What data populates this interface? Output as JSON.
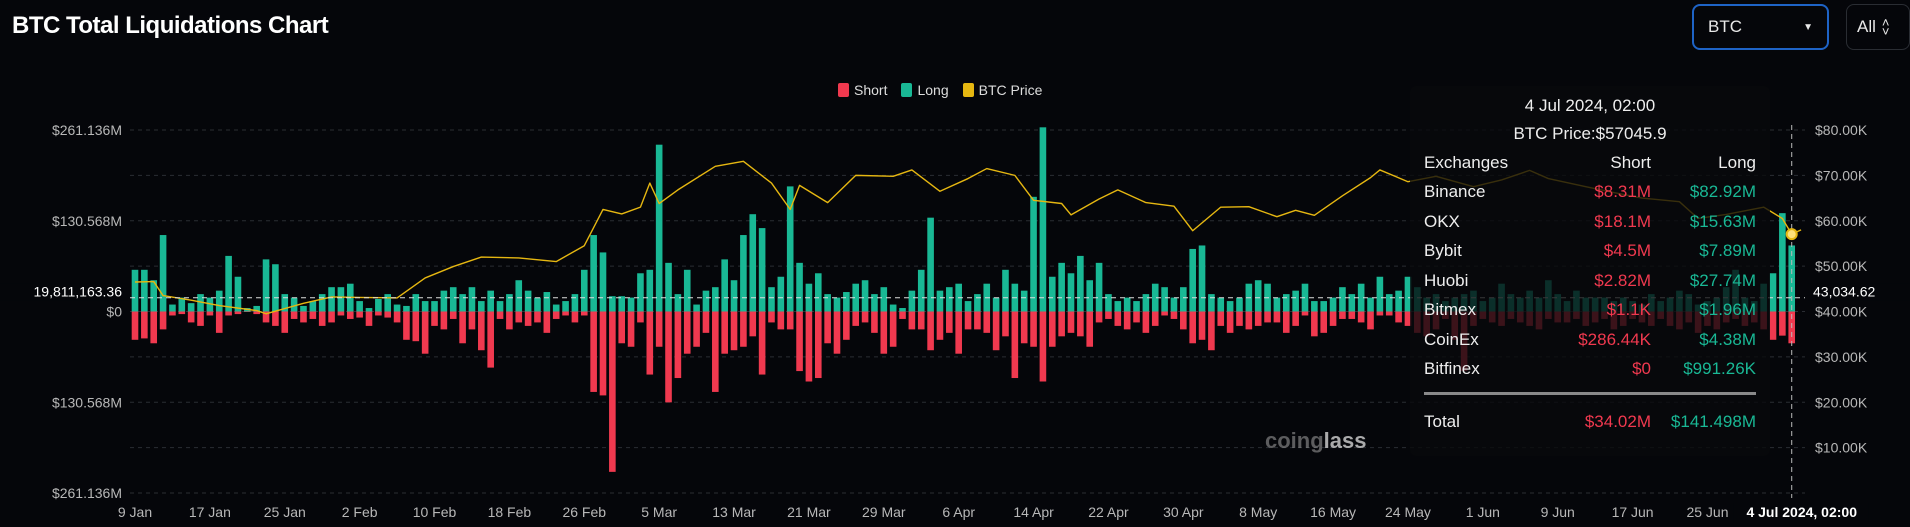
{
  "header": {
    "title": "BTC Total Liquidations Chart",
    "coin_select": "BTC",
    "range_select": "All"
  },
  "colors": {
    "short": "#f0394f",
    "long": "#19b895",
    "price": "#e6b711",
    "background": "#05060a",
    "select_border": "#1e63c6"
  },
  "legend": [
    {
      "label": "Short",
      "color": "#f0394f"
    },
    {
      "label": "Long",
      "color": "#19b895"
    },
    {
      "label": "BTC Price",
      "color": "#e6b711"
    }
  ],
  "tooltip": {
    "date": "4 Jul 2024, 02:00",
    "price": "BTC Price:$57045.9",
    "headers": {
      "name": "Exchanges",
      "short": "Short",
      "long": "Long"
    },
    "rows": [
      {
        "name": "Binance",
        "short": "$8.31M",
        "long": "$82.92M"
      },
      {
        "name": "OKX",
        "short": "$18.1M",
        "long": "$15.63M"
      },
      {
        "name": "Bybit",
        "short": "$4.5M",
        "long": "$7.89M"
      },
      {
        "name": "Huobi",
        "short": "$2.82M",
        "long": "$27.74M"
      },
      {
        "name": "Bitmex",
        "short": "$1.1K",
        "long": "$1.96M"
      },
      {
        "name": "CoinEx",
        "short": "$286.44K",
        "long": "$4.38M"
      },
      {
        "name": "Bitfinex",
        "short": "$0",
        "long": "$991.26K"
      }
    ],
    "total": {
      "name": "Total",
      "short": "$34.02M",
      "long": "$141.498M"
    }
  },
  "watermark": "coinglass",
  "chart_data": {
    "type": "bar",
    "title": "BTC Total Liquidations Chart",
    "x_ticks": [
      "9 Jan",
      "17 Jan",
      "25 Jan",
      "2 Feb",
      "10 Feb",
      "18 Feb",
      "26 Feb",
      "5 Mar",
      "13 Mar",
      "21 Mar",
      "29 Mar",
      "6 Apr",
      "14 Apr",
      "22 Apr",
      "30 Apr",
      "8 May",
      "16 May",
      "24 May",
      "1 Jun",
      "9 Jun",
      "17 Jun",
      "25 Jun"
    ],
    "x_hover_label": "4 Jul 2024, 02:00",
    "left_axis": {
      "ticks": [
        "$261.136M",
        "$130.568M",
        "$0",
        "$130.568M",
        "$261.136M"
      ],
      "range_musd": [
        -261.136,
        261.136
      ]
    },
    "right_axis": {
      "ticks": [
        "$80.00K",
        "$70.00K",
        "$60.00K",
        "$50.00K",
        "$40.00K",
        "$30.00K",
        "$20.00K",
        "$10.00K"
      ],
      "range": [
        0,
        80000
      ]
    },
    "crosshair": {
      "left_value": "19,811,163.36",
      "right_value": "43,034.62"
    },
    "grid": true,
    "legend_position": "top-center",
    "series": [
      {
        "name": "Long",
        "unit": "M USD",
        "values": [
          60,
          60,
          45,
          110,
          10,
          20,
          12,
          25,
          20,
          30,
          80,
          50,
          5,
          8,
          75,
          68,
          25,
          20,
          8,
          15,
          25,
          35,
          35,
          40,
          15,
          5,
          18,
          25,
          10,
          8,
          25,
          15,
          15,
          30,
          35,
          25,
          35,
          15,
          30,
          15,
          25,
          45,
          30,
          20,
          28,
          10,
          15,
          25,
          60,
          110,
          85,
          22,
          22,
          20,
          55,
          60,
          240,
          70,
          25,
          60,
          10,
          30,
          35,
          75,
          45,
          110,
          140,
          120,
          35,
          50,
          180,
          70,
          40,
          55,
          25,
          20,
          28,
          40,
          45,
          25,
          35,
          10,
          5,
          30,
          60,
          135,
          30,
          35,
          40,
          15,
          25,
          40,
          20,
          60,
          40,
          30,
          165,
          265,
          50,
          70,
          55,
          80,
          45,
          70,
          25,
          15,
          20,
          15,
          25,
          40,
          35,
          20,
          35,
          90,
          95,
          25,
          20,
          15,
          20,
          40,
          45,
          40,
          20,
          25,
          30,
          40,
          15,
          15,
          20,
          35,
          25,
          40,
          20,
          50,
          25,
          30,
          50,
          35,
          20,
          25,
          15,
          20,
          25,
          30,
          15,
          20,
          40,
          25,
          20,
          30,
          20,
          45,
          25,
          15,
          30,
          20,
          20,
          20,
          15,
          20,
          15,
          10,
          25,
          15,
          20,
          30,
          25,
          10,
          15,
          20,
          35,
          60,
          20,
          15,
          40,
          55,
          141.498,
          95
        ]
      },
      {
        "name": "Short",
        "unit": "M USD",
        "values": [
          40,
          38,
          45,
          25,
          5,
          3,
          15,
          20,
          5,
          30,
          5,
          3,
          0,
          3,
          15,
          20,
          30,
          10,
          15,
          10,
          20,
          15,
          5,
          10,
          8,
          20,
          5,
          8,
          15,
          40,
          42,
          60,
          20,
          25,
          10,
          45,
          25,
          55,
          80,
          10,
          25,
          15,
          20,
          15,
          30,
          10,
          5,
          15,
          5,
          115,
          120,
          230,
          45,
          50,
          15,
          90,
          50,
          130,
          95,
          60,
          50,
          30,
          115,
          60,
          55,
          50,
          35,
          90,
          15,
          25,
          25,
          85,
          100,
          95,
          45,
          60,
          40,
          20,
          15,
          30,
          60,
          50,
          10,
          25,
          25,
          55,
          40,
          30,
          60,
          25,
          25,
          30,
          55,
          35,
          95,
          45,
          50,
          100,
          50,
          35,
          30,
          35,
          50,
          15,
          10,
          20,
          25,
          15,
          30,
          20,
          5,
          10,
          25,
          45,
          40,
          55,
          20,
          30,
          20,
          25,
          20,
          15,
          15,
          30,
          20,
          5,
          35,
          30,
          20,
          10,
          10,
          15,
          25,
          5,
          5,
          15,
          20,
          30,
          35,
          25,
          10,
          40,
          85,
          20,
          10,
          15,
          20,
          10,
          15,
          20,
          25,
          10,
          15,
          15,
          10,
          20,
          15,
          10,
          25,
          20,
          10,
          15,
          20,
          10,
          20,
          25,
          15,
          30,
          20,
          25,
          15,
          10,
          20,
          15,
          25,
          40,
          34.02,
          45
        ]
      },
      {
        "name": "BTC Price",
        "unit": "USD",
        "points": [
          {
            "day": "9 Jan",
            "value": 46500
          },
          {
            "day": "11 Jan",
            "value": 46600
          },
          {
            "day": "12 Jan",
            "value": 43500
          },
          {
            "day": "15 Jan",
            "value": 42500
          },
          {
            "day": "18 Jan",
            "value": 41300
          },
          {
            "day": "22 Jan",
            "value": 40200
          },
          {
            "day": "23 Jan",
            "value": 39500
          },
          {
            "day": "27 Jan",
            "value": 41800
          },
          {
            "day": "30 Jan",
            "value": 43200
          },
          {
            "day": "2 Feb",
            "value": 43100
          },
          {
            "day": "6 Feb",
            "value": 43000
          },
          {
            "day": "9 Feb",
            "value": 47400
          },
          {
            "day": "12 Feb",
            "value": 49900
          },
          {
            "day": "15 Feb",
            "value": 52000
          },
          {
            "day": "19 Feb",
            "value": 51800
          },
          {
            "day": "23 Feb",
            "value": 51000
          },
          {
            "day": "26 Feb",
            "value": 54500
          },
          {
            "day": "28 Feb",
            "value": 62500
          },
          {
            "day": "1 Mar",
            "value": 61500
          },
          {
            "day": "3 Mar",
            "value": 63000
          },
          {
            "day": "4 Mar",
            "value": 68300
          },
          {
            "day": "5 Mar",
            "value": 63800
          },
          {
            "day": "7 Mar",
            "value": 66800
          },
          {
            "day": "11 Mar",
            "value": 72000
          },
          {
            "day": "14 Mar",
            "value": 73100
          },
          {
            "day": "17 Mar",
            "value": 68300
          },
          {
            "day": "19 Mar",
            "value": 62500
          },
          {
            "day": "20 Mar",
            "value": 67800
          },
          {
            "day": "23 Mar",
            "value": 64000
          },
          {
            "day": "26 Mar",
            "value": 70000
          },
          {
            "day": "30 Mar",
            "value": 69800
          },
          {
            "day": "1 Apr",
            "value": 71200
          },
          {
            "day": "4 Apr",
            "value": 66500
          },
          {
            "day": "7 Apr",
            "value": 69300
          },
          {
            "day": "9 Apr",
            "value": 71500
          },
          {
            "day": "12 Apr",
            "value": 70000
          },
          {
            "day": "14 Apr",
            "value": 64500
          },
          {
            "day": "17 Apr",
            "value": 63800
          },
          {
            "day": "18 Apr",
            "value": 61300
          },
          {
            "day": "21 Apr",
            "value": 64800
          },
          {
            "day": "23 Apr",
            "value": 66800
          },
          {
            "day": "26 Apr",
            "value": 64000
          },
          {
            "day": "29 Apr",
            "value": 63200
          },
          {
            "day": "1 May",
            "value": 57800
          },
          {
            "day": "4 May",
            "value": 63000
          },
          {
            "day": "7 May",
            "value": 63100
          },
          {
            "day": "10 May",
            "value": 60900
          },
          {
            "day": "12 May",
            "value": 62300
          },
          {
            "day": "14 May",
            "value": 61200
          },
          {
            "day": "17 May",
            "value": 65500
          },
          {
            "day": "20 May",
            "value": 69500
          },
          {
            "day": "21 May",
            "value": 71200
          },
          {
            "day": "24 May",
            "value": 68600
          },
          {
            "day": "27 May",
            "value": 69800
          },
          {
            "day": "31 May",
            "value": 67500
          },
          {
            "day": "3 Jun",
            "value": 69000
          },
          {
            "day": "6 Jun",
            "value": 71100
          },
          {
            "day": "8 Jun",
            "value": 69300
          },
          {
            "day": "12 Jun",
            "value": 67500
          },
          {
            "day": "15 Jun",
            "value": 66200
          },
          {
            "day": "18 Jun",
            "value": 65000
          },
          {
            "day": "22 Jun",
            "value": 64200
          },
          {
            "day": "24 Jun",
            "value": 60500
          },
          {
            "day": "27 Jun",
            "value": 61400
          },
          {
            "day": "1 Jul",
            "value": 63000
          },
          {
            "day": "3 Jul",
            "value": 60500
          },
          {
            "day": "4 Jul",
            "value": 57045.9
          },
          {
            "day": "5 Jul",
            "value": 58000
          }
        ]
      }
    ]
  }
}
